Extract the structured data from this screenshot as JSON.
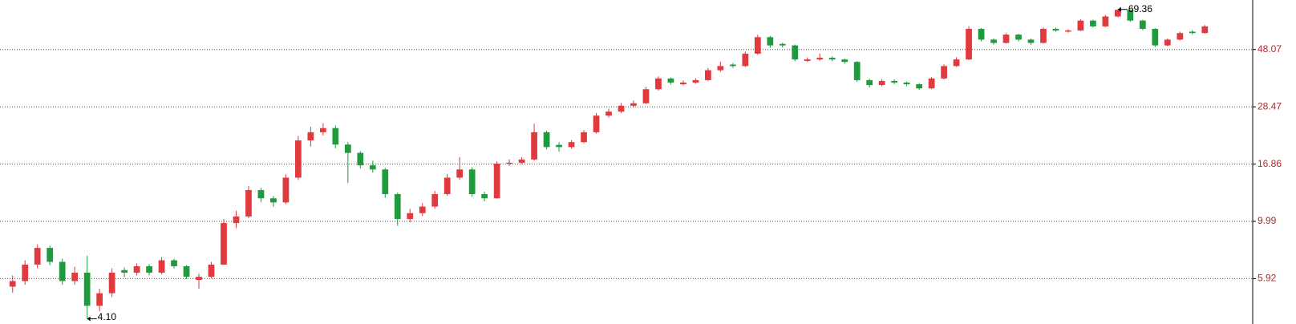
{
  "chart_data": {
    "type": "candlestick",
    "log_scale": true,
    "grid": true,
    "up_color": "#e0393e",
    "down_color": "#1f9a3c",
    "ylim": [
      3.91,
      75.6
    ],
    "yticks": [
      5.92,
      9.99,
      16.86,
      28.47,
      48.07
    ],
    "annotations": [
      {
        "value": 69.36,
        "label": "69.36"
      },
      {
        "value": 4.1,
        "label": "4.10"
      }
    ],
    "open": [
      5.5,
      5.79,
      6.73,
      7.84,
      6.9,
      5.79,
      6.25,
      4.62,
      5.18,
      6.4,
      6.25,
      6.63,
      6.25,
      7.0,
      6.63,
      5.85,
      6.02,
      6.73,
      9.84,
      10.45,
      13.3,
      12.34,
      11.88,
      14.9,
      20.94,
      22.57,
      23.44,
      20.16,
      18.69,
      16.68,
      16.06,
      12.82,
      10.21,
      10.77,
      11.44,
      12.82,
      14.9,
      16.06,
      12.82,
      12.34,
      16.94,
      17.08,
      17.59,
      22.57,
      20.1,
      19.71,
      20.62,
      22.57,
      26.27,
      27.26,
      28.75,
      29.41,
      33.44,
      36.9,
      35.0,
      35.54,
      36.34,
      39.79,
      41.9,
      41.33,
      46.29,
      53.84,
      50.6,
      49.92,
      43.3,
      43.9,
      44.57,
      43.9,
      42.92,
      36.34,
      34.73,
      36.08,
      35.54,
      35.0,
      33.7,
      36.9,
      41.33,
      43.9,
      58.07,
      52.63,
      51.06,
      55.08,
      52.63,
      51.06,
      58.07,
      56.6,
      57.2,
      62.63,
      59.41,
      65.04,
      69.08,
      62.63,
      58.07,
      49.92,
      52.63,
      56.6,
      55.9
    ],
    "high": [
      6.1,
      7.0,
      8.1,
      8.0,
      7.1,
      6.6,
      7.3,
      5.4,
      6.5,
      6.55,
      6.8,
      6.75,
      7.2,
      7.1,
      6.7,
      6.2,
      6.9,
      10.2,
      11.0,
      13.8,
      13.6,
      12.6,
      15.4,
      21.8,
      23.7,
      24.5,
      24.0,
      20.6,
      19.0,
      17.4,
      16.3,
      13.0,
      11.2,
      11.8,
      13.2,
      15.4,
      18.0,
      16.4,
      13.1,
      17.3,
      17.6,
      18.0,
      24.4,
      22.9,
      20.6,
      21.0,
      23.0,
      26.9,
      28.0,
      29.5,
      30.2,
      34.2,
      37.6,
      37.2,
      36.2,
      37.0,
      40.6,
      43.0,
      42.5,
      47.2,
      55.0,
      54.5,
      51.2,
      50.3,
      44.7,
      46.4,
      45.2,
      44.3,
      43.3,
      36.8,
      36.7,
      36.6,
      35.9,
      35.4,
      37.4,
      42.0,
      44.8,
      59.5,
      58.5,
      53.2,
      55.8,
      55.5,
      53.1,
      58.8,
      58.7,
      57.9,
      63.5,
      63.2,
      66.0,
      69.36,
      69.2,
      63.1,
      58.5,
      53.2,
      56.6,
      57.3,
      60.2
    ],
    "low": [
      5.2,
      5.6,
      6.5,
      6.7,
      5.6,
      5.6,
      4.1,
      4.4,
      5.0,
      6.0,
      6.1,
      6.1,
      6.15,
      6.5,
      5.9,
      5.4,
      5.95,
      6.7,
      9.4,
      10.3,
      11.9,
      11.4,
      11.7,
      14.6,
      19.8,
      21.9,
      19.5,
      14.2,
      16.2,
      15.6,
      12.4,
      9.6,
      9.9,
      10.5,
      11.2,
      12.6,
      14.6,
      12.5,
      12.0,
      12.3,
      16.6,
      16.9,
      17.4,
      19.3,
      18.9,
      19.4,
      20.4,
      22.3,
      25.8,
      26.9,
      28.3,
      29.2,
      33.0,
      34.9,
      34.6,
      35.1,
      36.0,
      39.2,
      40.6,
      41.0,
      45.8,
      48.8,
      48.9,
      43.2,
      42.8,
      43.4,
      43.2,
      42.2,
      35.8,
      34.0,
      34.3,
      35.0,
      34.4,
      33.2,
      33.4,
      36.6,
      41.0,
      43.6,
      51.8,
      50.3,
      50.8,
      51.8,
      50.2,
      50.8,
      56.6,
      56.1,
      56.9,
      58.8,
      59.0,
      64.5,
      62.0,
      57.4,
      49.2,
      49.5,
      52.2,
      55.3,
      55.5
    ],
    "close": [
      5.79,
      6.73,
      7.84,
      6.9,
      5.79,
      6.25,
      4.62,
      5.18,
      6.25,
      6.25,
      6.63,
      6.25,
      7.0,
      6.63,
      6.02,
      6.02,
      6.73,
      9.84,
      10.45,
      13.3,
      12.34,
      11.88,
      14.9,
      20.94,
      22.57,
      23.44,
      20.16,
      18.69,
      16.68,
      16.06,
      12.82,
      10.21,
      10.77,
      11.44,
      12.82,
      14.9,
      16.06,
      12.82,
      12.34,
      16.94,
      17.08,
      17.59,
      22.57,
      19.71,
      19.71,
      20.62,
      22.57,
      26.27,
      27.26,
      28.75,
      29.41,
      33.44,
      36.9,
      35.54,
      35.54,
      36.34,
      39.79,
      41.33,
      41.33,
      46.29,
      53.84,
      49.92,
      49.92,
      43.9,
      43.9,
      44.57,
      43.9,
      42.92,
      36.34,
      34.73,
      36.08,
      35.54,
      35.0,
      33.7,
      36.9,
      41.33,
      43.9,
      58.07,
      52.63,
      51.06,
      55.08,
      52.63,
      51.06,
      58.07,
      57.2,
      57.2,
      62.63,
      59.41,
      65.04,
      69.08,
      62.63,
      58.07,
      49.92,
      52.63,
      55.9,
      55.9,
      59.41
    ]
  }
}
